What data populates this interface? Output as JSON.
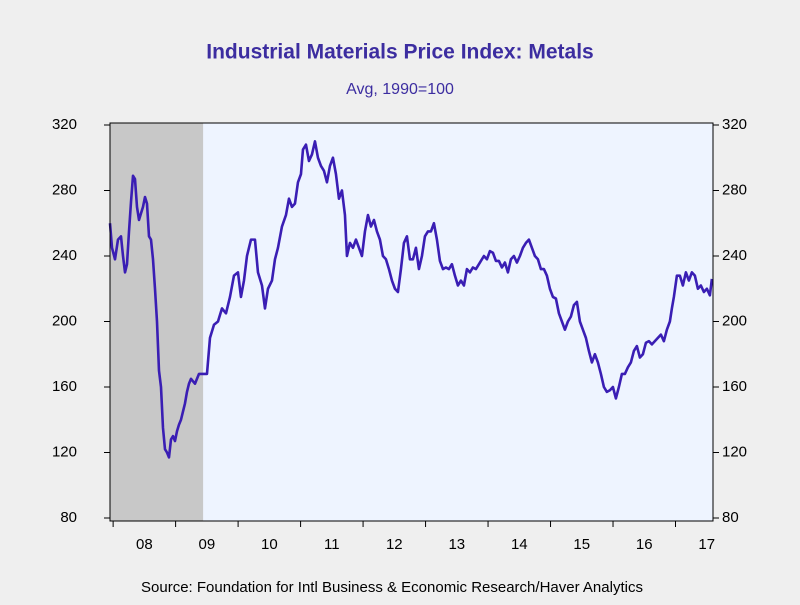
{
  "chart_data": {
    "type": "line",
    "title": "Industrial Materials Price Index: Metals",
    "subtitle": "Avg, 1990=100",
    "source": "Source:  Foundation for Intl Business & Economic Research/Haver Analytics",
    "color": "#3a1eb4",
    "shade_color": "#c8c8c8",
    "shaded": [
      [
        2007.95,
        2009.44
      ]
    ],
    "xlim": [
      2007.95,
      2017.6
    ],
    "xticks": [
      {
        "value": 2008,
        "label": "08"
      },
      {
        "value": 2009,
        "label": "09"
      },
      {
        "value": 2010,
        "label": "10"
      },
      {
        "value": 2011,
        "label": "11"
      },
      {
        "value": 2012,
        "label": "12"
      },
      {
        "value": 2013,
        "label": "13"
      },
      {
        "value": 2014,
        "label": "14"
      },
      {
        "value": 2015,
        "label": "15"
      },
      {
        "value": 2016,
        "label": "16"
      },
      {
        "value": 2017,
        "label": "17"
      }
    ],
    "ylim": [
      80,
      320
    ],
    "yticks": [
      80,
      120,
      160,
      200,
      240,
      280,
      320
    ],
    "y2lim": [
      80,
      320
    ],
    "y2ticks": [
      80,
      120,
      160,
      200,
      240,
      280,
      320
    ],
    "x": [
      2007.95,
      2007.982,
      2008.03,
      2008.078,
      2008.126,
      2008.158,
      2008.19,
      2008.222,
      2008.254,
      2008.286,
      2008.318,
      2008.35,
      2008.382,
      2008.414,
      2008.446,
      2008.478,
      2008.51,
      2008.542,
      2008.574,
      2008.606,
      2008.638,
      2008.67,
      2008.702,
      2008.734,
      2008.766,
      2008.798,
      2008.83,
      2008.862,
      2008.894,
      2008.926,
      2008.958,
      2008.99,
      2009.022,
      2009.054,
      2009.086,
      2009.118,
      2009.15,
      2009.182,
      2009.214,
      2009.246,
      2009.31,
      2009.374,
      2009.438,
      2009.502,
      2009.55,
      2009.614,
      2009.678,
      2009.742,
      2009.806,
      2009.87,
      2009.934,
      2009.998,
      2010.046,
      2010.094,
      2010.142,
      2010.206,
      2010.27,
      2010.318,
      2010.382,
      2010.43,
      2010.478,
      2010.542,
      2010.59,
      2010.638,
      2010.702,
      2010.766,
      2010.814,
      2010.862,
      2010.91,
      2010.958,
      2011.006,
      2011.038,
      2011.086,
      2011.134,
      2011.182,
      2011.23,
      2011.278,
      2011.326,
      2011.374,
      2011.422,
      2011.47,
      2011.518,
      2011.566,
      2011.614,
      2011.662,
      2011.71,
      2011.742,
      2011.79,
      2011.838,
      2011.886,
      2011.934,
      2011.982,
      2012.03,
      2012.078,
      2012.126,
      2012.174,
      2012.222,
      2012.27,
      2012.318,
      2012.366,
      2012.414,
      2012.462,
      2012.51,
      2012.558,
      2012.606,
      2012.654,
      2012.702,
      2012.75,
      2012.798,
      2012.846,
      2012.894,
      2012.942,
      2012.99,
      2013.038,
      2013.086,
      2013.134,
      2013.182,
      2013.23,
      2013.278,
      2013.326,
      2013.374,
      2013.422,
      2013.47,
      2013.518,
      2013.566,
      2013.614,
      2013.662,
      2013.71,
      2013.758,
      2013.806,
      2013.87,
      2013.934,
      2013.982,
      2014.03,
      2014.078,
      2014.126,
      2014.174,
      2014.222,
      2014.27,
      2014.318,
      2014.366,
      2014.414,
      2014.462,
      2014.51,
      2014.558,
      2014.606,
      2014.654,
      2014.702,
      2014.75,
      2014.798,
      2014.846,
      2014.894,
      2014.942,
      2014.99,
      2015.038,
      2015.086,
      2015.134,
      2015.182,
      2015.23,
      2015.278,
      2015.326,
      2015.374,
      2015.422,
      2015.47,
      2015.518,
      2015.566,
      2015.614,
      2015.662,
      2015.71,
      2015.758,
      2015.806,
      2015.854,
      2015.902,
      2015.95,
      2015.998,
      2016.046,
      2016.094,
      2016.142,
      2016.19,
      2016.238,
      2016.286,
      2016.334,
      2016.382,
      2016.43,
      2016.478,
      2016.526,
      2016.574,
      2016.622,
      2016.67,
      2016.718,
      2016.766,
      2016.814,
      2016.862,
      2016.91,
      2016.942,
      2016.974,
      2017.022,
      2017.07,
      2017.118,
      2017.166,
      2017.214,
      2017.262,
      2017.31,
      2017.358,
      2017.406,
      2017.454,
      2017.502,
      2017.55,
      2017.582
    ],
    "values": [
      260,
      245,
      238,
      250,
      252,
      240,
      230,
      235,
      255,
      273,
      289,
      287,
      270,
      262,
      266,
      270,
      276,
      272,
      252,
      250,
      238,
      220,
      200,
      170,
      160,
      135,
      122,
      120,
      117,
      128,
      130,
      127,
      133,
      137,
      140,
      145,
      150,
      157,
      162,
      165,
      162,
      168,
      168,
      168,
      190,
      198,
      200,
      208,
      205,
      215,
      228,
      230,
      215,
      225,
      240,
      250,
      250,
      230,
      222,
      208,
      220,
      225,
      238,
      245,
      258,
      265,
      275,
      270,
      272,
      285,
      290,
      305,
      308,
      298,
      302,
      310,
      300,
      295,
      292,
      285,
      295,
      300,
      290,
      275,
      280,
      265,
      240,
      248,
      245,
      250,
      245,
      240,
      255,
      265,
      258,
      262,
      255,
      250,
      240,
      238,
      232,
      225,
      220,
      218,
      232,
      248,
      252,
      238,
      238,
      245,
      232,
      240,
      252,
      255,
      255,
      260,
      250,
      237,
      232,
      233,
      232,
      235,
      228,
      222,
      225,
      222,
      232,
      230,
      233,
      232,
      236,
      240,
      238,
      243,
      242,
      237,
      237,
      233,
      236,
      230,
      238,
      240,
      236,
      240,
      245,
      248,
      250,
      245,
      240,
      238,
      232,
      232,
      228,
      220,
      215,
      214,
      205,
      200,
      195,
      200,
      203,
      210,
      212,
      200,
      195,
      190,
      182,
      175,
      180,
      175,
      168,
      160,
      157,
      158,
      160,
      153,
      160,
      168,
      168,
      172,
      175,
      182,
      185,
      178,
      180,
      187,
      188,
      186,
      188,
      190,
      192,
      188,
      195,
      200,
      208,
      215,
      228,
      228,
      222,
      230,
      225,
      230,
      228,
      220,
      222,
      218,
      220,
      216,
      226
    ]
  }
}
